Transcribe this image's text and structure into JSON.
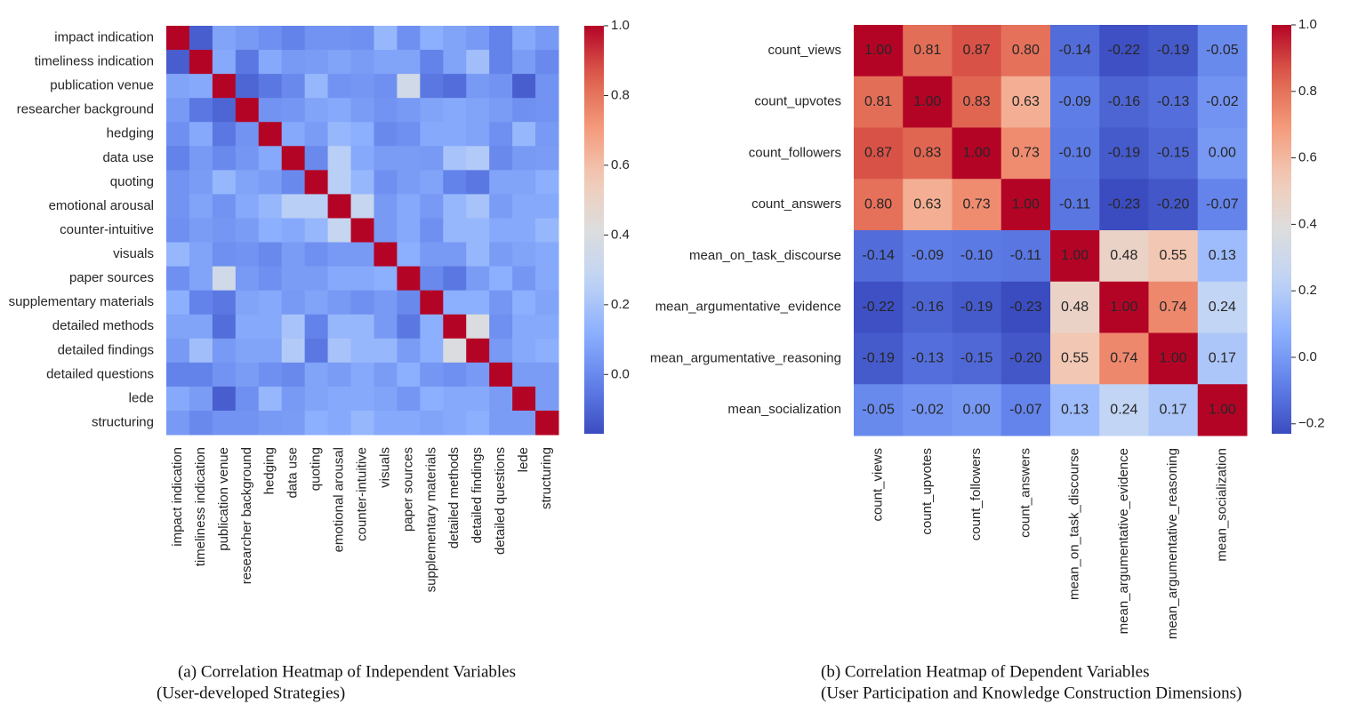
{
  "chart_data": [
    {
      "type": "heatmap",
      "colormap": "coolwarm",
      "annotate": false,
      "caption": [
        "(a) Correlation Heatmap of Independent Variables",
        "(User-developed Strategies)"
      ],
      "categories": [
        "impact indication",
        "timeliness indication",
        "publication venue",
        "researcher background",
        "hedging",
        "data use",
        "quoting",
        "emotional arousal",
        "counter-intuitive",
        "visuals",
        "paper sources",
        "supplementary materials",
        "detailed methods",
        "detailed findings",
        "detailed questions",
        "lede",
        "structuring"
      ],
      "values": [
        [
          1.0,
          -0.12,
          0.08,
          0.05,
          0.02,
          -0.02,
          0.03,
          0.03,
          0.02,
          0.15,
          0.02,
          0.12,
          0.08,
          0.05,
          -0.02,
          0.1,
          0.05
        ],
        [
          -0.12,
          1.0,
          0.1,
          -0.05,
          0.1,
          0.05,
          0.06,
          0.08,
          0.06,
          0.08,
          0.08,
          -0.02,
          0.08,
          0.18,
          -0.02,
          0.06,
          0.0
        ],
        [
          0.08,
          0.1,
          1.0,
          -0.1,
          -0.05,
          0.0,
          0.15,
          0.03,
          0.04,
          0.02,
          0.35,
          -0.05,
          -0.08,
          0.05,
          0.03,
          -0.12,
          0.03
        ],
        [
          0.05,
          -0.05,
          -0.1,
          1.0,
          0.03,
          0.04,
          0.08,
          0.1,
          0.06,
          0.03,
          0.05,
          0.08,
          0.1,
          0.08,
          0.06,
          0.02,
          0.03
        ],
        [
          0.02,
          0.1,
          -0.05,
          0.03,
          1.0,
          0.1,
          0.06,
          0.15,
          0.12,
          0.0,
          0.02,
          0.1,
          0.1,
          0.08,
          0.02,
          0.15,
          0.05
        ],
        [
          -0.02,
          0.05,
          0.0,
          0.04,
          0.1,
          1.0,
          0.0,
          0.25,
          0.1,
          0.06,
          0.06,
          0.05,
          0.2,
          0.23,
          0.0,
          0.05,
          0.06
        ],
        [
          0.03,
          0.06,
          0.15,
          0.08,
          0.06,
          0.0,
          1.0,
          0.25,
          0.15,
          0.02,
          0.06,
          0.08,
          -0.02,
          -0.05,
          0.08,
          0.08,
          0.12
        ],
        [
          0.03,
          0.08,
          0.03,
          0.1,
          0.15,
          0.25,
          0.25,
          1.0,
          0.3,
          0.05,
          0.1,
          0.05,
          0.15,
          0.2,
          0.06,
          0.1,
          0.1
        ],
        [
          0.02,
          0.06,
          0.04,
          0.06,
          0.12,
          0.1,
          0.15,
          0.3,
          1.0,
          0.05,
          0.1,
          0.02,
          0.15,
          0.15,
          0.1,
          0.1,
          0.15
        ],
        [
          0.15,
          0.08,
          0.02,
          0.03,
          0.0,
          0.06,
          0.02,
          0.05,
          0.05,
          1.0,
          0.12,
          0.05,
          0.05,
          0.15,
          0.06,
          0.08,
          0.1
        ],
        [
          0.02,
          0.08,
          0.35,
          0.05,
          0.02,
          0.06,
          0.06,
          0.1,
          0.1,
          0.12,
          1.0,
          0.0,
          -0.05,
          0.06,
          0.12,
          0.04,
          0.1
        ],
        [
          0.12,
          -0.02,
          -0.05,
          0.08,
          0.1,
          0.05,
          0.08,
          0.05,
          0.02,
          0.05,
          0.0,
          1.0,
          0.12,
          0.12,
          0.04,
          0.12,
          0.08
        ],
        [
          0.08,
          0.08,
          -0.08,
          0.1,
          0.1,
          0.2,
          -0.02,
          0.15,
          0.15,
          0.05,
          -0.05,
          0.12,
          1.0,
          0.4,
          0.02,
          0.1,
          0.1
        ],
        [
          0.05,
          0.18,
          0.05,
          0.08,
          0.08,
          0.23,
          -0.05,
          0.2,
          0.15,
          0.15,
          0.06,
          0.12,
          0.4,
          1.0,
          0.05,
          0.1,
          0.12
        ],
        [
          -0.02,
          -0.02,
          0.03,
          0.06,
          0.02,
          0.0,
          0.08,
          0.06,
          0.1,
          0.06,
          0.12,
          0.04,
          0.02,
          0.05,
          1.0,
          0.06,
          0.06
        ],
        [
          0.1,
          0.06,
          -0.12,
          0.02,
          0.15,
          0.05,
          0.08,
          0.1,
          0.1,
          0.08,
          0.04,
          0.12,
          0.1,
          0.1,
          0.06,
          1.0,
          0.06
        ],
        [
          0.05,
          0.0,
          0.03,
          0.03,
          0.05,
          0.06,
          0.12,
          0.1,
          0.15,
          0.1,
          0.1,
          0.08,
          0.1,
          0.12,
          0.06,
          0.06,
          1.0
        ]
      ],
      "zlim": [
        -0.17,
        1.0
      ],
      "zticks": [
        {
          "value": 0,
          "label": "0.0"
        },
        0.2,
        0.4,
        0.6,
        0.8,
        {
          "value": 1,
          "label": "1.0"
        }
      ]
    },
    {
      "type": "heatmap",
      "colormap": "coolwarm",
      "annotate": true,
      "caption": [
        "(b) Correlation Heatmap of Dependent Variables",
        "(User Participation and Knowledge Construction Dimensions)"
      ],
      "categories": [
        "count_views",
        "count_upvotes",
        "count_followers",
        "count_answers",
        "mean_on_task_discourse",
        "mean_argumentative_evidence",
        "mean_argumentative_reasoning",
        "mean_socialization"
      ],
      "values": [
        [
          1.0,
          0.81,
          0.87,
          0.8,
          -0.14,
          -0.22,
          -0.19,
          -0.05
        ],
        [
          0.81,
          1.0,
          0.83,
          0.63,
          -0.09,
          -0.16,
          -0.13,
          -0.02
        ],
        [
          0.87,
          0.83,
          1.0,
          0.73,
          -0.1,
          -0.19,
          -0.15,
          0.0
        ],
        [
          0.8,
          0.63,
          0.73,
          1.0,
          -0.11,
          -0.23,
          -0.2,
          -0.07
        ],
        [
          -0.14,
          -0.09,
          -0.1,
          -0.11,
          1.0,
          0.48,
          0.55,
          0.13
        ],
        [
          -0.22,
          -0.16,
          -0.19,
          -0.23,
          0.48,
          1.0,
          0.74,
          0.24
        ],
        [
          -0.19,
          -0.13,
          -0.15,
          -0.2,
          0.55,
          0.74,
          1.0,
          0.17
        ],
        [
          -0.05,
          -0.02,
          0.0,
          -0.07,
          0.13,
          0.24,
          0.17,
          1.0
        ]
      ],
      "value_labels": [
        [
          "1.00",
          "0.81",
          "0.87",
          "0.80",
          "-0.14",
          "-0.22",
          "-0.19",
          "-0.05"
        ],
        [
          "0.81",
          "1.00",
          "0.83",
          "0.63",
          "-0.09",
          "-0.16",
          "-0.13",
          "-0.02"
        ],
        [
          "0.87",
          "0.83",
          "1.00",
          "0.73",
          "-0.10",
          "-0.19",
          "-0.15",
          "0.00"
        ],
        [
          "0.80",
          "0.63",
          "0.73",
          "1.00",
          "-0.11",
          "-0.23",
          "-0.20",
          "-0.07"
        ],
        [
          "-0.14",
          "-0.09",
          "-0.10",
          "-0.11",
          "1.00",
          "0.48",
          "0.55",
          "0.13"
        ],
        [
          "-0.22",
          "-0.16",
          "-0.19",
          "-0.23",
          "0.48",
          "1.00",
          "0.74",
          "0.24"
        ],
        [
          "-0.19",
          "-0.13",
          "-0.15",
          "-0.20",
          "0.55",
          "0.74",
          "1.00",
          "0.17"
        ],
        [
          "-0.05",
          "-0.02",
          "0.00",
          "-0.07",
          "0.13",
          "0.24",
          "0.17",
          "1.00"
        ]
      ],
      "zlim": [
        -0.23,
        1.0
      ],
      "zticks": [
        {
          "value": -0.2,
          "label": "−0.2"
        },
        {
          "value": 0,
          "label": "0.0"
        },
        0.2,
        0.4,
        0.6,
        0.8,
        {
          "value": 1,
          "label": "1.0"
        }
      ]
    }
  ]
}
